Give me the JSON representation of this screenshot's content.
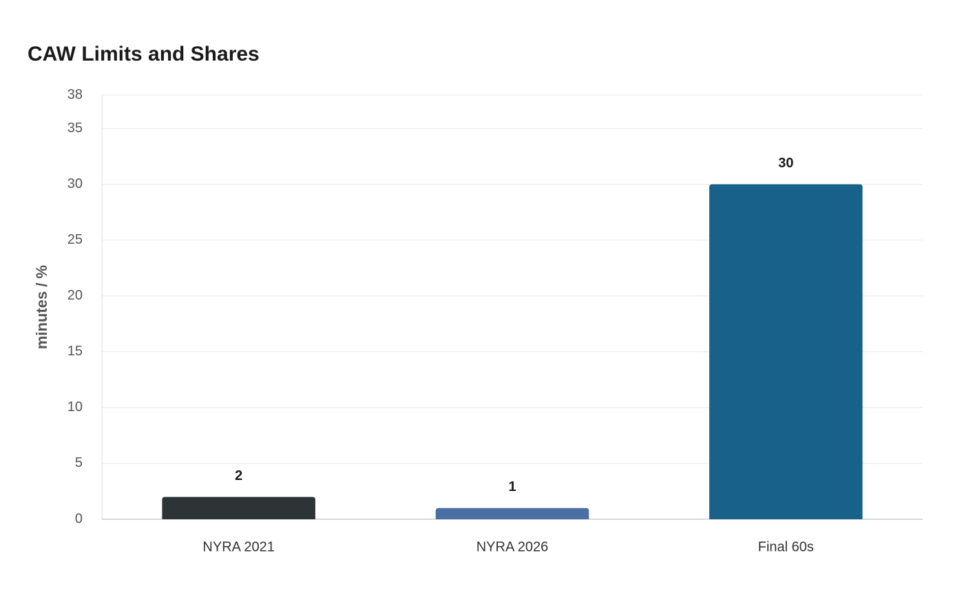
{
  "chart_data": {
    "type": "bar",
    "title": "CAW Limits and Shares",
    "y_label": "minutes / %",
    "categories": [
      "NYRA 2021",
      "NYRA 2026",
      "Final 60s"
    ],
    "values": [
      2,
      1,
      30
    ],
    "colors": [
      "#2d3436",
      "#4a6fa5",
      "#17618a"
    ],
    "ylim": [
      0,
      38
    ],
    "yticks": [
      0,
      5,
      10,
      15,
      20,
      25,
      30,
      35,
      38
    ],
    "grid": true
  }
}
